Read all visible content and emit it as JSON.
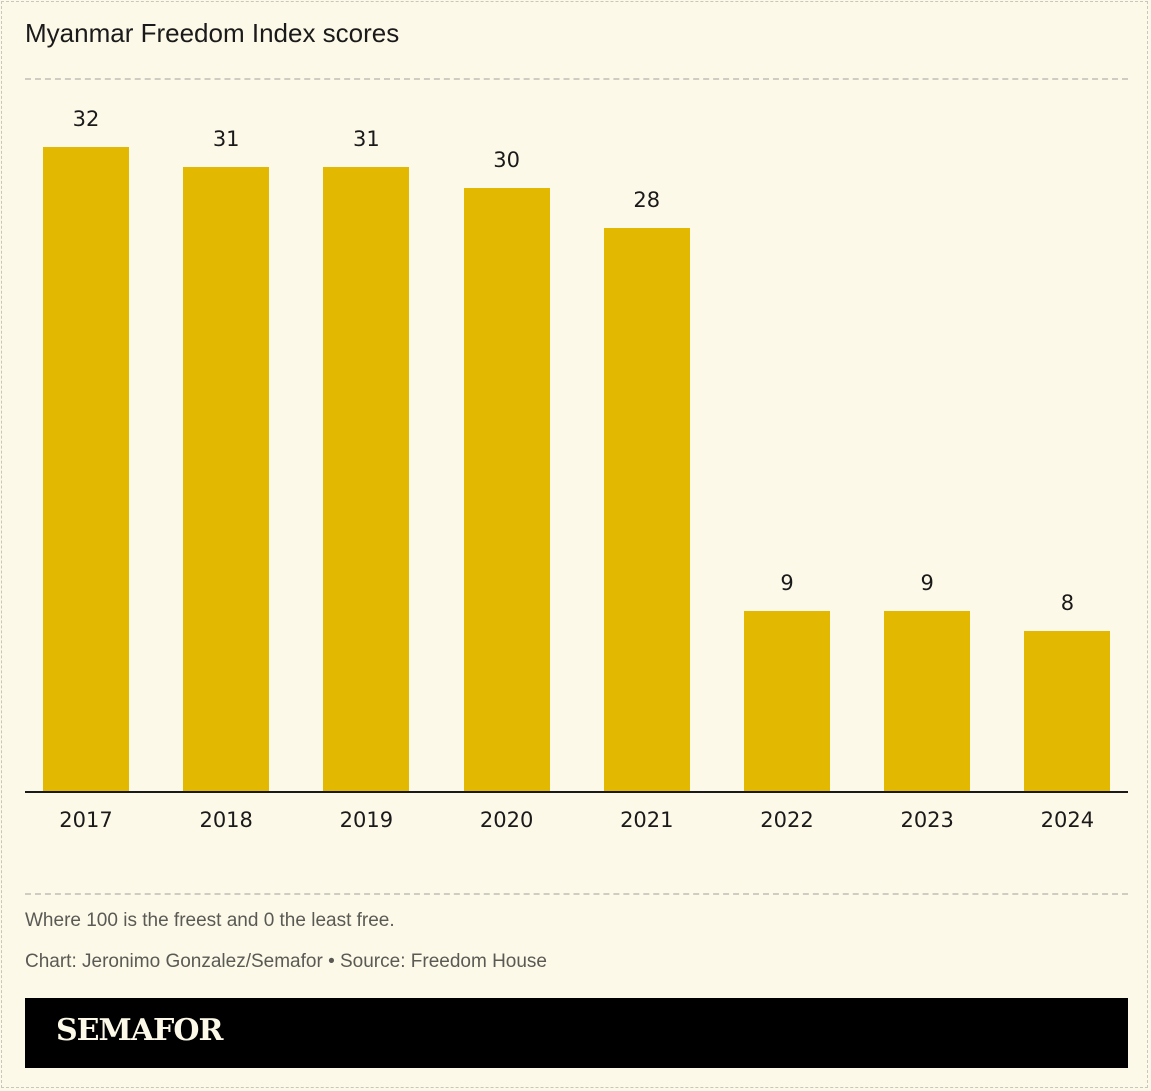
{
  "title": "Myanmar Freedom Index scores",
  "footer": {
    "note": "Where 100 is the freest and 0 the least free.",
    "credit": "Chart: Jeronimo Gonzalez/Semafor • Source: Freedom House",
    "brand": "SEMAFOR"
  },
  "colors": {
    "bar": "#e3b800",
    "background": "#fdf9e8",
    "brand_bg": "#000000"
  },
  "chart_data": {
    "type": "bar",
    "title": "Myanmar Freedom Index scores",
    "categories": [
      "2017",
      "2018",
      "2019",
      "2020",
      "2021",
      "2022",
      "2023",
      "2024"
    ],
    "values": [
      32,
      31,
      31,
      30,
      28,
      9,
      9,
      8
    ],
    "xlabel": "",
    "ylabel": "",
    "ylim": [
      0,
      35
    ],
    "grid": false,
    "legend": null,
    "annotations": [
      "Where 100 is the freest and 0 the least free."
    ]
  }
}
